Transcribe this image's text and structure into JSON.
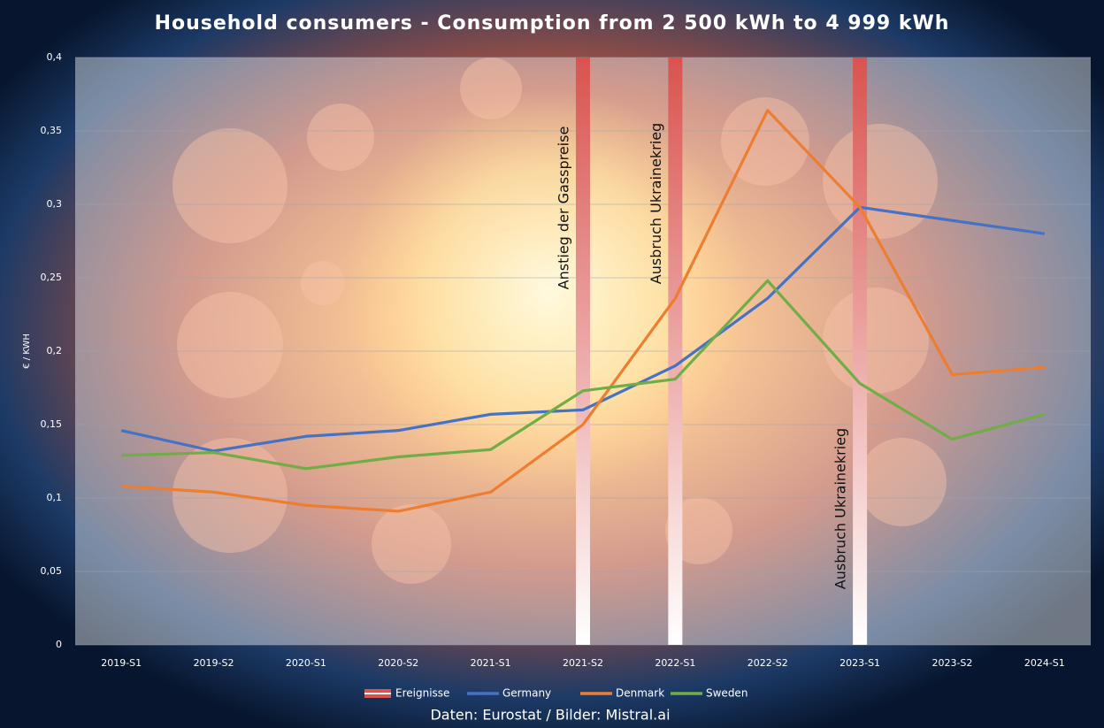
{
  "chart_data": {
    "type": "line",
    "title": "Household consumers - Consumption from 2 500 kWh to 4 999 kWh",
    "y_label": "€ / KWH",
    "source": "Daten: Eurostat / Bilder: Mistral.ai",
    "categories": [
      "2019-S1",
      "2019-S2",
      "2020-S1",
      "2020-S2",
      "2021-S1",
      "2021-S2",
      "2022-S1",
      "2022-S2",
      "2023-S1",
      "2023-S2",
      "2024-S1"
    ],
    "series": [
      {
        "name": "Germany",
        "color": "#4472c4",
        "values": [
          0.146,
          0.132,
          0.142,
          0.146,
          0.157,
          0.16,
          0.19,
          0.236,
          0.298,
          0.289,
          0.28
        ]
      },
      {
        "name": "Denmark",
        "color": "#ed7d31",
        "values": [
          0.108,
          0.104,
          0.095,
          0.091,
          0.104,
          0.15,
          0.236,
          0.364,
          0.298,
          0.184,
          0.189
        ]
      },
      {
        "name": "Sweden",
        "color": "#70ad47",
        "values": [
          0.129,
          0.131,
          0.12,
          0.128,
          0.133,
          0.173,
          0.181,
          0.248,
          0.178,
          0.14,
          0.157
        ]
      }
    ],
    "events": {
      "name": "Ereignisse",
      "color": "#d9534f",
      "items": [
        {
          "x": "2021-S2",
          "label": "Anstieg der Gasspreise"
        },
        {
          "x": "2022-S1",
          "label": "Ausbruch Ukrainekrieg"
        },
        {
          "x": "2023-S1",
          "label": "Ausbruch Ukrainekrieg"
        }
      ]
    },
    "ylim": [
      0,
      0.4
    ],
    "yticks": [
      0,
      {
        "value": 0.05,
        "label": "0,05"
      },
      {
        "value": 0.1,
        "label": "0,1"
      },
      {
        "value": 0.15,
        "label": "0,15"
      },
      {
        "value": 0.2,
        "label": "0,2"
      },
      {
        "value": 0.25,
        "label": "0,25"
      },
      {
        "value": 0.3,
        "label": "0,3"
      },
      {
        "value": 0.35,
        "label": "0,35"
      },
      {
        "value": 0.4,
        "label": "0,4"
      }
    ],
    "grid": true,
    "legend": "bottom"
  }
}
